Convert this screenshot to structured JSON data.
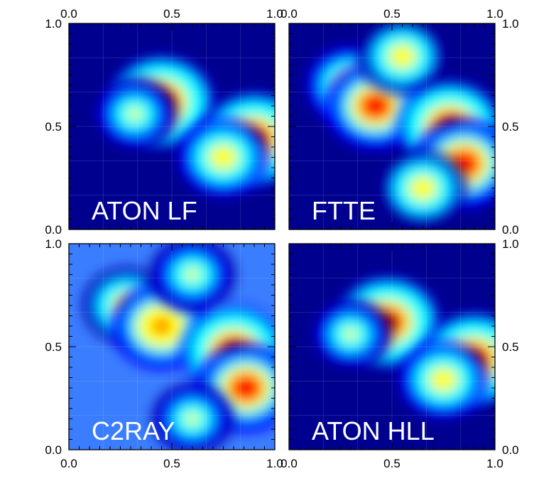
{
  "figure": {
    "background": "#ffffff",
    "frame_color": "#000000",
    "panel_label_color": "#ffffff",
    "colormap": [
      "#00008f",
      "#0000ff",
      "#00ffff",
      "#ffff00",
      "#ff0000",
      "#800000"
    ]
  },
  "chart_data": [
    {
      "type": "heatmap",
      "label": "ATON LF",
      "xlim": [
        0.0,
        1.0
      ],
      "ylim": [
        0.0,
        1.0
      ],
      "x_ticks": [
        "0.0",
        "0.5",
        "1.0"
      ],
      "y_ticks": [
        "0.0",
        "0.5",
        "1.0"
      ],
      "background_color": "#00008f",
      "regions": [
        {
          "cx": 0.45,
          "cy": 0.62,
          "level": 0.92
        },
        {
          "cx": 0.32,
          "cy": 0.56,
          "level": 0.55
        },
        {
          "cx": 0.9,
          "cy": 0.44,
          "level": 0.93
        },
        {
          "cx": 0.75,
          "cy": 0.35,
          "level": 0.65
        }
      ]
    },
    {
      "type": "heatmap",
      "label": "FTTE",
      "xlim": [
        0.0,
        1.0
      ],
      "ylim": [
        0.0,
        1.0
      ],
      "x_ticks": [
        "0.0",
        "0.5",
        "1.0"
      ],
      "y_ticks": [
        "0.0",
        "0.5",
        "1.0"
      ],
      "background_color": "#00008f",
      "regions": [
        {
          "cx": 0.3,
          "cy": 0.7,
          "level": 0.62
        },
        {
          "cx": 0.42,
          "cy": 0.6,
          "level": 0.85
        },
        {
          "cx": 0.55,
          "cy": 0.84,
          "level": 0.6
        },
        {
          "cx": 0.78,
          "cy": 0.5,
          "level": 0.9
        },
        {
          "cx": 0.85,
          "cy": 0.32,
          "level": 0.88
        },
        {
          "cx": 0.65,
          "cy": 0.2,
          "level": 0.6
        }
      ]
    },
    {
      "type": "heatmap",
      "label": "C2RAY",
      "xlim": [
        0.0,
        1.0
      ],
      "ylim": [
        0.0,
        1.0
      ],
      "x_ticks": [
        "0.0",
        "0.5",
        "1.0"
      ],
      "y_ticks": [
        "0.0",
        "0.5",
        "1.0"
      ],
      "background_color": "#3a7dff",
      "regions": [
        {
          "cx": 0.28,
          "cy": 0.7,
          "level": 0.6
        },
        {
          "cx": 0.45,
          "cy": 0.6,
          "level": 0.82
        },
        {
          "cx": 0.6,
          "cy": 0.85,
          "level": 0.58
        },
        {
          "cx": 0.8,
          "cy": 0.48,
          "level": 0.9
        },
        {
          "cx": 0.86,
          "cy": 0.3,
          "level": 0.86
        },
        {
          "cx": 0.6,
          "cy": 0.15,
          "level": 0.5
        }
      ]
    },
    {
      "type": "heatmap",
      "label": "ATON HLL",
      "xlim": [
        0.0,
        1.0
      ],
      "ylim": [
        0.0,
        1.0
      ],
      "x_ticks": [
        "0.0",
        "0.5",
        "1.0"
      ],
      "y_ticks": [
        "0.0",
        "0.5",
        "1.0"
      ],
      "background_color": "#00008f",
      "regions": [
        {
          "cx": 0.48,
          "cy": 0.62,
          "level": 0.9
        },
        {
          "cx": 0.3,
          "cy": 0.56,
          "level": 0.5
        },
        {
          "cx": 0.9,
          "cy": 0.44,
          "level": 0.92
        },
        {
          "cx": 0.75,
          "cy": 0.34,
          "level": 0.62
        }
      ]
    }
  ]
}
